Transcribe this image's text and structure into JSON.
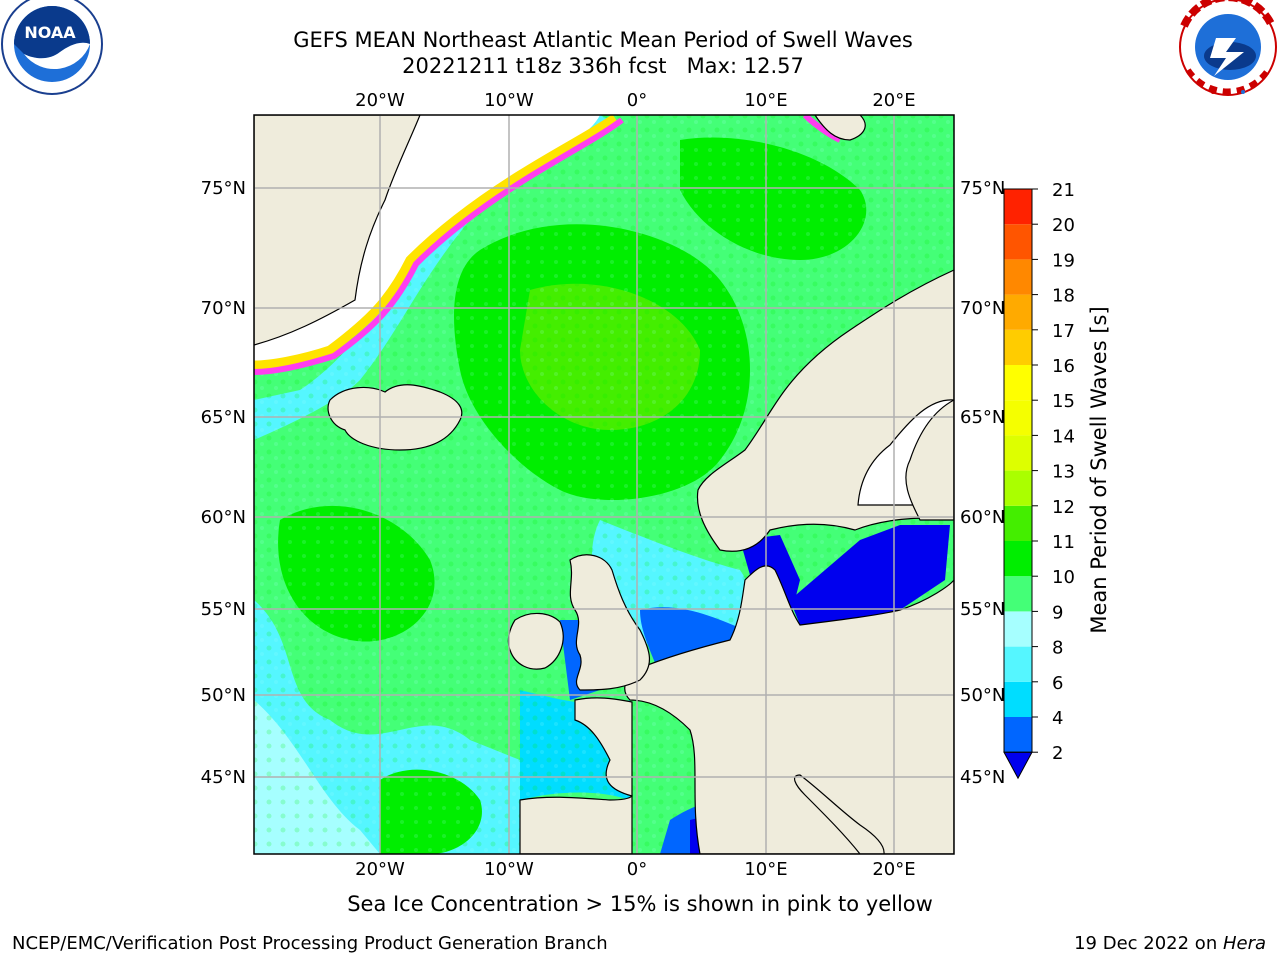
{
  "title": {
    "line1": "GEFS MEAN Northeast Atlantic Mean Period of Swell Waves",
    "line2": "20221211 t18z 336h fcst   Max: 12.57"
  },
  "logos": {
    "left": {
      "name": "noaa-logo",
      "text": "NOAA",
      "ring_text": "NATIONAL OCEANIC AND ATMOSPHERIC ADMINISTRATION · U.S. DEPARTMENT OF COMMERCE"
    },
    "right": {
      "name": "national-weather-service-logo",
      "ring_text": "NATIONAL WEATHER SERVICE"
    }
  },
  "map": {
    "longitude_labels": [
      "20°W",
      "10°W",
      "0°",
      "10°E",
      "20°E"
    ],
    "latitude_labels": [
      "75°N",
      "70°N",
      "65°N",
      "60°N",
      "55°N",
      "50°N",
      "45°N"
    ],
    "colors": {
      "land": "#efecdc",
      "ice_edge": "#ff3df0",
      "ice_yellow": "#ffe400",
      "grid": "#b0b0b0"
    }
  },
  "colorbar": {
    "label": "Mean Period of Swell Waves [s]",
    "ticks": [
      "21",
      "20",
      "19",
      "18",
      "17",
      "16",
      "15",
      "14",
      "13",
      "12",
      "11",
      "10",
      "9",
      "8",
      "6",
      "4",
      "2"
    ],
    "levels": [
      2,
      4,
      6,
      8,
      9,
      10,
      11,
      12,
      13,
      14,
      15,
      16,
      17,
      18,
      19,
      20,
      21
    ],
    "colors": [
      "#0066ff",
      "#00ddff",
      "#55f6ff",
      "#a6ffff",
      "#44ff77",
      "#00ee00",
      "#44ee00",
      "#aaff00",
      "#ddff00",
      "#f5ff00",
      "#ffff00",
      "#ffcc00",
      "#ffaa00",
      "#ff8800",
      "#ff5500",
      "#ff2200"
    ],
    "under_color": "#0000ee",
    "max_value": 12.57
  },
  "footer": {
    "subtitle": "Sea Ice Concentration > 15% is shown in pink to yellow",
    "credit": "NCEP/EMC/Verification Post Processing Product Generation Branch",
    "date": "19 Dec 2022 on ",
    "host": "Hera"
  }
}
